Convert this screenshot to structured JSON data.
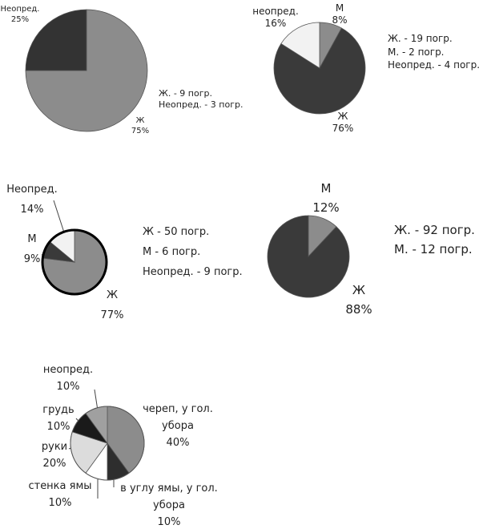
{
  "chart_data": [
    {
      "type": "pie",
      "categories": [
        "Ж",
        "Неопред."
      ],
      "values": [
        75,
        25
      ],
      "value_labels": [
        "75%",
        "25%"
      ],
      "colors": [
        "#8c8c8c",
        "#333333"
      ],
      "notes": [
        "Ж. - 9 погр.",
        "Неопред. - 3 погр."
      ]
    },
    {
      "type": "pie",
      "categories": [
        "М",
        "Ж",
        "неопред."
      ],
      "values": [
        8,
        76,
        16
      ],
      "value_labels": [
        "8%",
        "76%",
        "16%"
      ],
      "colors": [
        "#8c8c8c",
        "#3a3a3a",
        "#f2f2f2"
      ],
      "notes": [
        "Ж. - 19 погр.",
        "М. - 2 погр.",
        "Неопред. - 4 погр."
      ]
    },
    {
      "type": "pie",
      "categories": [
        "Ж",
        "М",
        "Неопред."
      ],
      "values": [
        77,
        9,
        14
      ],
      "value_labels": [
        "77%",
        "9%",
        "14%"
      ],
      "colors": [
        "#8c8c8c",
        "#3a3a3a",
        "#f2f2f2"
      ],
      "notes": [
        "Ж - 50 погр.",
        "М - 6 погр.",
        "Неопред. - 9 погр."
      ]
    },
    {
      "type": "pie",
      "categories": [
        "М",
        "Ж"
      ],
      "values": [
        12,
        88
      ],
      "value_labels": [
        "12%",
        "88%"
      ],
      "colors": [
        "#8c8c8c",
        "#3a3a3a"
      ],
      "notes": [
        "Ж. - 92 погр.",
        "М. - 12 погр."
      ]
    },
    {
      "type": "pie",
      "categories": [
        "череп, у гол. убора",
        "в углу ямы, у гол. убора",
        "стенка ямы",
        "руки",
        "грудь",
        "неопред."
      ],
      "values": [
        40,
        10,
        10,
        20,
        10,
        10
      ],
      "value_labels": [
        "40%",
        "10%",
        "10%",
        "20%",
        "10%",
        "10%"
      ],
      "colors": [
        "#8c8c8c",
        "#2e2e2e",
        "#ffffff",
        "#dcdcdc",
        "#1a1a1a",
        "#a0a0a0"
      ]
    }
  ]
}
